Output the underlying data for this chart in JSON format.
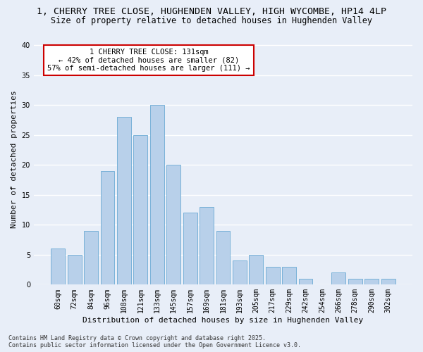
{
  "title_line1": "1, CHERRY TREE CLOSE, HUGHENDEN VALLEY, HIGH WYCOMBE, HP14 4LP",
  "title_line2": "Size of property relative to detached houses in Hughenden Valley",
  "xlabel": "Distribution of detached houses by size in Hughenden Valley",
  "ylabel": "Number of detached properties",
  "categories": [
    "60sqm",
    "72sqm",
    "84sqm",
    "96sqm",
    "108sqm",
    "121sqm",
    "133sqm",
    "145sqm",
    "157sqm",
    "169sqm",
    "181sqm",
    "193sqm",
    "205sqm",
    "217sqm",
    "229sqm",
    "242sqm",
    "254sqm",
    "266sqm",
    "278sqm",
    "290sqm",
    "302sqm"
  ],
  "values": [
    6,
    5,
    9,
    19,
    28,
    25,
    30,
    20,
    12,
    13,
    9,
    4,
    5,
    3,
    3,
    1,
    0,
    2,
    1,
    1,
    1
  ],
  "bar_color": "#b8d0ea",
  "bar_edge_color": "#6aaad4",
  "annotation_text": "1 CHERRY TREE CLOSE: 131sqm\n← 42% of detached houses are smaller (82)\n57% of semi-detached houses are larger (111) →",
  "annotation_box_color": "white",
  "annotation_box_edge_color": "#cc0000",
  "ylim": [
    0,
    42
  ],
  "yticks": [
    0,
    5,
    10,
    15,
    20,
    25,
    30,
    35,
    40
  ],
  "background_color": "#e8eef8",
  "plot_background": "#e8eef8",
  "grid_color": "white",
  "footer_text": "Contains HM Land Registry data © Crown copyright and database right 2025.\nContains public sector information licensed under the Open Government Licence v3.0.",
  "title_fontsize": 9.5,
  "subtitle_fontsize": 8.5,
  "axis_label_fontsize": 8,
  "tick_fontsize": 7,
  "annotation_fontsize": 7.5,
  "footer_fontsize": 6
}
